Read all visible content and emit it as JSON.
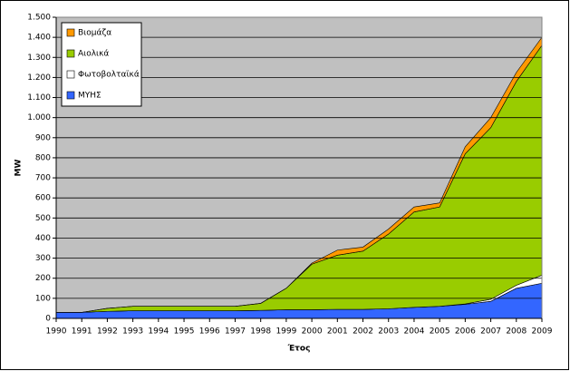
{
  "chart_data": {
    "type": "stacked-area",
    "y_label": "MW",
    "x_label": "Έτος",
    "categories": [
      "1990",
      "1991",
      "1992",
      "1993",
      "1994",
      "1995",
      "1996",
      "1997",
      "1998",
      "1999",
      "2000",
      "2001",
      "2002",
      "2003",
      "2004",
      "2005",
      "2006",
      "2007",
      "2008",
      "2009"
    ],
    "series": [
      {
        "name": "ΜΥΗΣ",
        "color": "#3366ff",
        "values": [
          30,
          30,
          35,
          38,
          38,
          38,
          38,
          38,
          40,
          43,
          43,
          45,
          45,
          48,
          55,
          60,
          70,
          85,
          150,
          175
        ]
      },
      {
        "name": "Φωτοβολταϊκά",
        "color": "#ffffff",
        "values": [
          0,
          0,
          0,
          0,
          0,
          0,
          0,
          0,
          0,
          0,
          0,
          0,
          0,
          0,
          0,
          0,
          2,
          10,
          15,
          40
        ]
      },
      {
        "name": "Αιολικά",
        "color": "#99cc00",
        "values": [
          0,
          0,
          15,
          22,
          22,
          22,
          22,
          22,
          35,
          107,
          227,
          270,
          290,
          372,
          475,
          495,
          748,
          855,
          1015,
          1145
        ]
      },
      {
        "name": "Βιομάζα",
        "color": "#ff9900",
        "values": [
          0,
          0,
          0,
          0,
          0,
          0,
          0,
          0,
          0,
          0,
          5,
          25,
          20,
          25,
          25,
          20,
          35,
          50,
          45,
          40
        ]
      }
    ],
    "ylim": [
      0,
      1500
    ],
    "yticks": [
      0,
      100,
      200,
      300,
      400,
      500,
      600,
      700,
      800,
      900,
      {
        "value": 1000,
        "label": "1.000"
      },
      {
        "value": 1100,
        "label": "1.100"
      },
      {
        "value": 1200,
        "label": "1.200"
      },
      {
        "value": 1300,
        "label": "1.300"
      },
      {
        "value": 1400,
        "label": "1.400"
      },
      {
        "value": 1500,
        "label": "1.500"
      }
    ],
    "grid": true,
    "legend": "top-left",
    "plot_background": "#c0c0c0"
  }
}
